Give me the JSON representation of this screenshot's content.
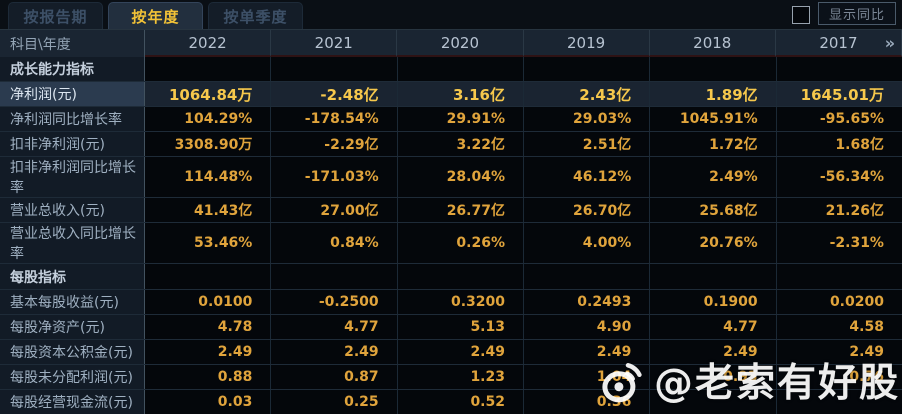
{
  "tabs": [
    {
      "label": "按报告期",
      "active": false
    },
    {
      "label": "按年度",
      "active": true
    },
    {
      "label": "按单季度",
      "active": false
    }
  ],
  "controls": {
    "show_yoy_label": "显示同比",
    "checkbox_checked": false
  },
  "table": {
    "corner_header": "科目\\年度",
    "year_columns": [
      "2022",
      "2021",
      "2020",
      "2019",
      "2018",
      "2017"
    ],
    "more_columns_glyph": "»",
    "rows": [
      {
        "type": "section",
        "label": "成长能力指标",
        "values": [
          "",
          "",
          "",
          "",
          "",
          ""
        ]
      },
      {
        "type": "data",
        "highlight": true,
        "label": "净利润(元)",
        "values": [
          "1064.84万",
          "-2.48亿",
          "3.16亿",
          "2.43亿",
          "1.89亿",
          "1645.01万"
        ]
      },
      {
        "type": "data",
        "highlight": false,
        "label": "净利润同比增长率",
        "values": [
          "104.29%",
          "-178.54%",
          "29.91%",
          "29.03%",
          "1045.91%",
          "-95.65%"
        ]
      },
      {
        "type": "data",
        "highlight": false,
        "label": "扣非净利润(元)",
        "values": [
          "3308.90万",
          "-2.29亿",
          "3.22亿",
          "2.51亿",
          "1.72亿",
          "1.68亿"
        ]
      },
      {
        "type": "data",
        "highlight": false,
        "label": "扣非净利润同比增长率",
        "values": [
          "114.48%",
          "-171.03%",
          "28.04%",
          "46.12%",
          "2.49%",
          "-56.34%"
        ]
      },
      {
        "type": "data",
        "highlight": false,
        "label": "营业总收入(元)",
        "values": [
          "41.43亿",
          "27.00亿",
          "26.77亿",
          "26.70亿",
          "25.68亿",
          "21.26亿"
        ]
      },
      {
        "type": "data",
        "highlight": false,
        "label": "营业总收入同比增长率",
        "values": [
          "53.46%",
          "0.84%",
          "0.26%",
          "4.00%",
          "20.76%",
          "-2.31%"
        ]
      },
      {
        "type": "section",
        "label": "每股指标",
        "values": [
          "",
          "",
          "",
          "",
          "",
          ""
        ]
      },
      {
        "type": "data",
        "highlight": false,
        "label": "基本每股收益(元)",
        "values": [
          "0.0100",
          "-0.2500",
          "0.3200",
          "0.2493",
          "0.1900",
          "0.0200"
        ]
      },
      {
        "type": "data",
        "highlight": false,
        "label": "每股净资产(元)",
        "values": [
          "4.78",
          "4.77",
          "5.13",
          "4.90",
          "4.77",
          "4.58"
        ]
      },
      {
        "type": "data",
        "highlight": false,
        "label": "每股资本公积金(元)",
        "values": [
          "2.49",
          "2.49",
          "2.49",
          "2.49",
          "2.49",
          "2.49"
        ]
      },
      {
        "type": "data",
        "highlight": false,
        "label": "每股未分配利润(元)",
        "values": [
          "0.88",
          "0.87",
          "1.23",
          "1.04",
          "0.93",
          "0.76"
        ]
      },
      {
        "type": "data",
        "highlight": false,
        "label": "每股经营现金流(元)",
        "values": [
          "0.03",
          "0.25",
          "0.52",
          "0.36",
          "",
          ""
        ]
      }
    ]
  },
  "watermark": {
    "text": "@老索有好股",
    "icon": "weibo-eye-icon"
  },
  "colors": {
    "accent_gold": "#e0a43c",
    "highlight_gold": "#f6c84c",
    "tab_active_text": "#f3c337",
    "header_bg": "#1a2532",
    "label_bg": "#121b26",
    "cell_bg": "#04070b",
    "highlight_row_bg": "#1a2431",
    "highlight_label_bg": "#2b3b4f"
  }
}
